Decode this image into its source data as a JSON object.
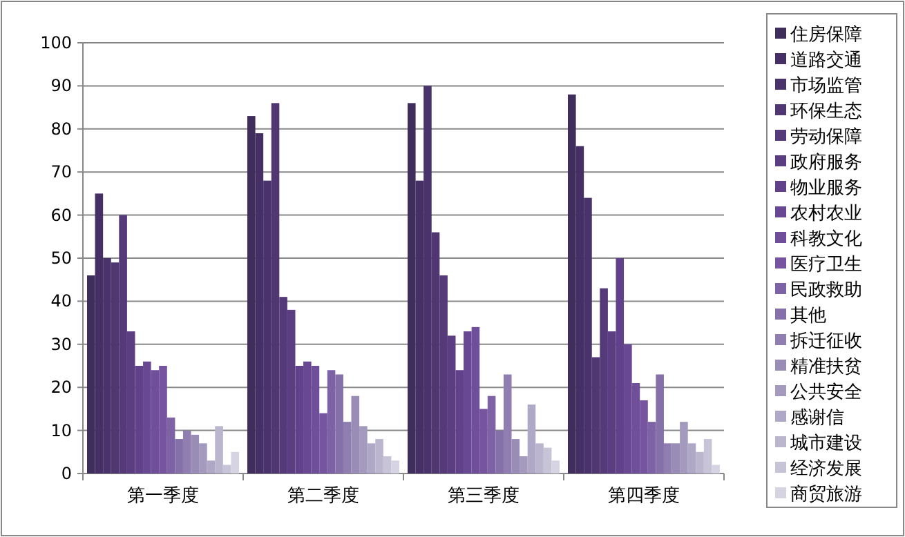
{
  "chart_data": {
    "type": "bar",
    "categories": [
      "第一季度",
      "第二季度",
      "第三季度",
      "第四季度"
    ],
    "ylim": [
      0,
      100
    ],
    "yticks": [
      0,
      10,
      20,
      30,
      40,
      50,
      60,
      70,
      80,
      90,
      100
    ],
    "grid": "y",
    "legend": "right",
    "series": [
      {
        "name": "住房保障",
        "color": "#3f2d5c",
        "values": [
          46,
          83,
          86,
          88
        ]
      },
      {
        "name": "道路交通",
        "color": "#452f64",
        "values": [
          65,
          79,
          68,
          76
        ]
      },
      {
        "name": "市场监管",
        "color": "#4a336b",
        "values": [
          50,
          68,
          90,
          64
        ]
      },
      {
        "name": "环保生态",
        "color": "#503772",
        "values": [
          49,
          86,
          56,
          27
        ]
      },
      {
        "name": "劳动保障",
        "color": "#553a7a",
        "values": [
          60,
          41,
          46,
          43
        ]
      },
      {
        "name": "政府服务",
        "color": "#5b3e82",
        "values": [
          33,
          38,
          32,
          33
        ]
      },
      {
        "name": "物业服务",
        "color": "#61428a",
        "values": [
          25,
          25,
          24,
          50
        ]
      },
      {
        "name": "农村农业",
        "color": "#684892",
        "values": [
          26,
          26,
          33,
          30
        ]
      },
      {
        "name": "科教文化",
        "color": "#6f4f9a",
        "values": [
          24,
          25,
          34,
          21
        ]
      },
      {
        "name": "医疗卫生",
        "color": "#7654a0",
        "values": [
          25,
          14,
          15,
          17
        ]
      },
      {
        "name": "民政救助",
        "color": "#7e62a6",
        "values": [
          13,
          24,
          18,
          12
        ]
      },
      {
        "name": "其他",
        "color": "#8670a9",
        "values": [
          8,
          23,
          10,
          23
        ]
      },
      {
        "name": "拆迁征收",
        "color": "#8f7eaf",
        "values": [
          10,
          12,
          23,
          7
        ]
      },
      {
        "name": "精准扶贫",
        "color": "#998cb6",
        "values": [
          9,
          18,
          8,
          7
        ]
      },
      {
        "name": "公共安全",
        "color": "#a49abe",
        "values": [
          7,
          11,
          4,
          12
        ]
      },
      {
        "name": "感谢信",
        "color": "#afa8c6",
        "values": [
          3,
          7,
          16,
          7
        ]
      },
      {
        "name": "城市建设",
        "color": "#bbb6ce",
        "values": [
          11,
          8,
          7,
          5
        ]
      },
      {
        "name": "经济发展",
        "color": "#c8c4d8",
        "values": [
          2,
          4,
          6,
          8
        ]
      },
      {
        "name": "商贸旅游",
        "color": "#d6d3e2",
        "values": [
          5,
          3,
          3,
          2
        ]
      }
    ]
  }
}
